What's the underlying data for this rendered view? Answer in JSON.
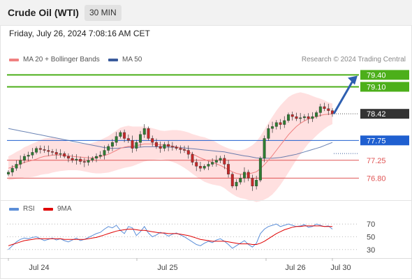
{
  "header": {
    "instrument": "Crude Oil (WTI)",
    "interval": "30 MIN",
    "datetime": "Friday, July 26, 2024 7:08:16 AM CET",
    "credit": "Research © 2024 Trading Central"
  },
  "colors": {
    "up": "#2e7d32",
    "down": "#c62828",
    "bollinger_band": "#ffe0e0",
    "ma20": "#f08080",
    "ma50": "#3a5b9c",
    "resistance": "#4caf1a",
    "pivot": "#1f5fd0",
    "support": "#e05555",
    "last": "#333333",
    "rsi": "#5b8ed8",
    "rsi_ma": "#e00000",
    "arrow": "#2e5fb0"
  },
  "chart_data": [
    {
      "type": "candlestick",
      "legend": [
        {
          "name": "MA 20 + Bollinger Bands",
          "color": "#f08080"
        },
        {
          "name": "MA 50",
          "color": "#3a5b9c"
        }
      ],
      "ylim": [
        76.28,
        79.6
      ],
      "x_ticks": [
        "Jul 24",
        "Jul 25",
        "Jul 26",
        "Jul 30"
      ],
      "levels": [
        {
          "label": "79.40",
          "value": 79.4,
          "kind": "resistance"
        },
        {
          "label": "79.10",
          "value": 79.1,
          "kind": "resistance"
        },
        {
          "label": "78.42",
          "value": 78.42,
          "kind": "last"
        },
        {
          "label": "77.75",
          "value": 77.75,
          "kind": "pivot"
        },
        {
          "label": "77.25",
          "value": 77.25,
          "kind": "support"
        },
        {
          "label": "76.80",
          "value": 76.8,
          "kind": "support"
        }
      ],
      "closes": [
        76.95,
        77.05,
        77.15,
        77.25,
        77.35,
        77.38,
        77.45,
        77.55,
        77.52,
        77.5,
        77.47,
        77.45,
        77.4,
        77.42,
        77.35,
        77.3,
        77.25,
        77.28,
        77.22,
        77.2,
        77.25,
        77.3,
        77.35,
        77.38,
        77.5,
        77.6,
        77.7,
        77.85,
        77.95,
        77.8,
        77.75,
        77.55,
        77.7,
        77.9,
        78.05,
        77.8,
        77.7,
        77.6,
        77.55,
        77.65,
        77.6,
        77.58,
        77.55,
        77.52,
        77.5,
        77.4,
        77.2,
        77.1,
        77.05,
        77.1,
        77.15,
        77.2,
        77.25,
        77.3,
        77.15,
        76.9,
        76.6,
        76.7,
        76.8,
        76.95,
        76.8,
        76.6,
        76.75,
        77.3,
        77.8,
        78.05,
        78.1,
        78.2,
        78.15,
        78.25,
        78.4,
        78.35,
        78.3,
        78.32,
        78.35,
        78.3,
        78.35,
        78.45,
        78.6,
        78.55,
        78.5,
        78.42
      ],
      "ma20": [
        77.05,
        77.08,
        77.12,
        77.15,
        77.2,
        77.22,
        77.25,
        77.28,
        77.32,
        77.35,
        77.36,
        77.38,
        77.38,
        77.38,
        77.37,
        77.36,
        77.35,
        77.34,
        77.33,
        77.32,
        77.31,
        77.31,
        77.32,
        77.34,
        77.37,
        77.4,
        77.45,
        77.5,
        77.55,
        77.58,
        77.6,
        77.6,
        77.62,
        77.64,
        77.66,
        77.66,
        77.66,
        77.65,
        77.64,
        77.63,
        77.62,
        77.61,
        77.59,
        77.56,
        77.52,
        77.47,
        77.41,
        77.36,
        77.31,
        77.27,
        77.23,
        77.2,
        77.16,
        77.12,
        77.07,
        77.01,
        76.96,
        76.92,
        76.9,
        76.9,
        76.91,
        76.93,
        76.96,
        77.04,
        77.14,
        77.25,
        77.37,
        77.5,
        77.63,
        77.76,
        77.89,
        78.0,
        78.1,
        78.18,
        78.24,
        78.29,
        78.32,
        78.35,
        78.38,
        78.4,
        78.41,
        78.42
      ],
      "bb_width": [
        0.3,
        0.32,
        0.34,
        0.36,
        0.38,
        0.4,
        0.42,
        0.43,
        0.44,
        0.45,
        0.45,
        0.44,
        0.42,
        0.4,
        0.38,
        0.36,
        0.35,
        0.34,
        0.34,
        0.35,
        0.36,
        0.38,
        0.4,
        0.42,
        0.44,
        0.46,
        0.48,
        0.5,
        0.52,
        0.52,
        0.52,
        0.5,
        0.48,
        0.46,
        0.44,
        0.42,
        0.4,
        0.38,
        0.36,
        0.36,
        0.38,
        0.4,
        0.42,
        0.44,
        0.46,
        0.48,
        0.5,
        0.52,
        0.54,
        0.56,
        0.56,
        0.56,
        0.54,
        0.52,
        0.52,
        0.54,
        0.56,
        0.58,
        0.6,
        0.62,
        0.66,
        0.7,
        0.76,
        0.82,
        0.88,
        0.94,
        0.98,
        1.0,
        1.0,
        0.98,
        0.95,
        0.9,
        0.84,
        0.78,
        0.7,
        0.62,
        0.55,
        0.48,
        0.42,
        0.36,
        0.3,
        0.26
      ],
      "ma50": [
        78.05,
        78.03,
        78.01,
        77.99,
        77.97,
        77.95,
        77.93,
        77.91,
        77.89,
        77.87,
        77.85,
        77.83,
        77.81,
        77.79,
        77.77,
        77.75,
        77.73,
        77.71,
        77.69,
        77.67,
        77.65,
        77.63,
        77.61,
        77.59,
        77.57,
        77.56,
        77.55,
        77.55,
        77.56,
        77.57,
        77.58,
        77.58,
        77.58,
        77.58,
        77.59,
        77.59,
        77.59,
        77.59,
        77.59,
        77.59,
        77.58,
        77.58,
        77.58,
        77.57,
        77.56,
        77.55,
        77.54,
        77.53,
        77.52,
        77.51,
        77.5,
        77.49,
        77.48,
        77.47,
        77.46,
        77.44,
        77.42,
        77.4,
        77.38,
        77.36,
        77.35,
        77.33,
        77.31,
        77.3,
        77.3,
        77.3,
        77.3,
        77.31,
        77.32,
        77.34,
        77.36,
        77.38,
        77.4,
        77.43,
        77.46,
        77.49,
        77.52,
        77.55,
        77.58,
        77.62,
        77.66,
        77.7
      ]
    },
    {
      "type": "line",
      "legend": [
        {
          "name": "RSI",
          "color": "#5b8ed8"
        },
        {
          "name": "9MA",
          "color": "#e00000"
        }
      ],
      "ylim": [
        20,
        80
      ],
      "y_ticks": [
        30,
        50,
        70
      ],
      "rsi": [
        30,
        36,
        42,
        46,
        48,
        47,
        49,
        50,
        47,
        44,
        46,
        48,
        45,
        47,
        44,
        42,
        45,
        48,
        44,
        46,
        49,
        52,
        55,
        57,
        62,
        66,
        64,
        68,
        60,
        55,
        66,
        64,
        52,
        58,
        66,
        56,
        50,
        53,
        57,
        55,
        51,
        54,
        56,
        53,
        50,
        46,
        42,
        38,
        36,
        40,
        43,
        41,
        45,
        47,
        43,
        38,
        32,
        36,
        40,
        44,
        38,
        34,
        40,
        55,
        62,
        66,
        68,
        70,
        66,
        68,
        70,
        68,
        66,
        67,
        69,
        65,
        66,
        70,
        68,
        66,
        67,
        62
      ],
      "rsi_ma": [
        36,
        38,
        40,
        42,
        44,
        45,
        46,
        47,
        47,
        47,
        47,
        47,
        47,
        47,
        46,
        46,
        46,
        46,
        46,
        46,
        47,
        48,
        49,
        51,
        53,
        55,
        57,
        59,
        60,
        61,
        62,
        62,
        61,
        60,
        60,
        59,
        58,
        57,
        56,
        56,
        55,
        55,
        55,
        54,
        53,
        52,
        50,
        48,
        46,
        45,
        44,
        43,
        43,
        43,
        43,
        42,
        41,
        40,
        39,
        39,
        39,
        38,
        38,
        40,
        43,
        47,
        51,
        55,
        58,
        61,
        63,
        65,
        66,
        66,
        67,
        67,
        67,
        67,
        67,
        66,
        66,
        66
      ]
    }
  ]
}
